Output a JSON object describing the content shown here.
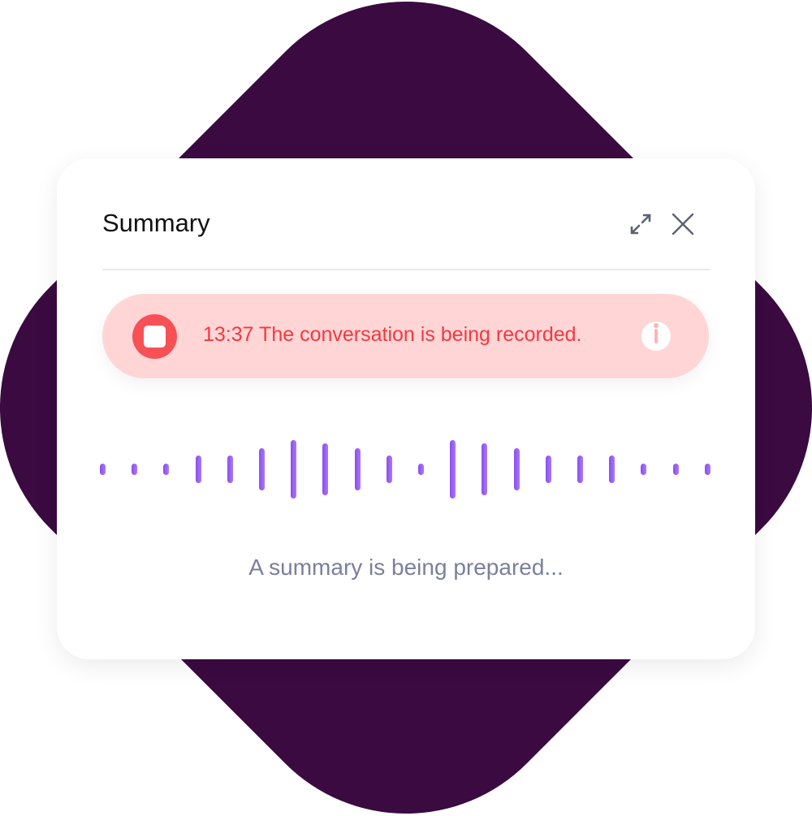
{
  "colors": {
    "background_shape": "#3a0a40",
    "banner": "#ffd5d6",
    "recording": "#f4393f",
    "wave": "#9457f2"
  },
  "header": {
    "title": "Summary",
    "expand_icon": "expand-arrows-icon",
    "close_icon": "close-icon"
  },
  "recording": {
    "time": "13:37",
    "message": "The conversation is being recorded.",
    "full_text": "13:37 The conversation is being recorded.",
    "stop_icon": "stop-icon",
    "info_icon": "info-icon"
  },
  "waveform": {
    "levels": [
      0.19,
      0.19,
      0.19,
      0.47,
      0.47,
      0.72,
      1.0,
      0.89,
      0.72,
      0.47,
      0.19,
      1.0,
      0.89,
      0.72,
      0.47,
      0.47,
      0.47,
      0.19,
      0.19,
      0.19
    ]
  },
  "status": "A summary is being prepared..."
}
